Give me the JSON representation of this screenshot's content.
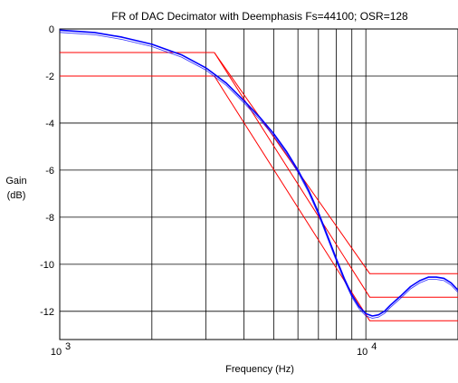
{
  "chart_data": {
    "type": "line",
    "title": "FR of DAC Decimator with Deemphasis Fs=44100; OSR=128",
    "xlabel": "Frequency (Hz)",
    "ylabel_line1": "Gain",
    "ylabel_line2": "(dB)",
    "x_scale": "log",
    "xlim": [
      1000,
      20000
    ],
    "ylim": [
      -13.2,
      0
    ],
    "grid": true,
    "x_tick_labels": [
      {
        "base": "10",
        "exp": "3",
        "value": 1000
      },
      {
        "base": "10",
        "exp": "4",
        "value": 10000
      }
    ],
    "y_ticks": [
      0,
      -2,
      -4,
      -6,
      -8,
      -10,
      -12
    ],
    "y_tick_labels": [
      "0",
      "-2",
      "-4",
      "-6",
      "-8",
      "-10",
      "-12"
    ],
    "series": [
      {
        "role": "response",
        "color": "#0000ff",
        "x": [
          1000,
          1300,
          1600,
          2000,
          2500,
          3000,
          3500,
          4000,
          4500,
          5000,
          5500,
          6000,
          6500,
          7000,
          7500,
          8000,
          8500,
          9000,
          9500,
          10000,
          10500,
          11000,
          11500,
          12000,
          13000,
          14000,
          15000,
          16000,
          17000,
          18000,
          19000,
          20000
        ],
        "y": [
          -0.05,
          -0.15,
          -0.35,
          -0.65,
          -1.1,
          -1.65,
          -2.3,
          -3.05,
          -3.75,
          -4.45,
          -5.2,
          -6.0,
          -6.85,
          -7.8,
          -8.8,
          -9.75,
          -10.6,
          -11.3,
          -11.8,
          -12.1,
          -12.2,
          -12.15,
          -12.0,
          -11.75,
          -11.35,
          -10.95,
          -10.7,
          -10.55,
          -10.55,
          -10.6,
          -10.8,
          -11.1
        ]
      }
    ],
    "mask_lines": {
      "color": "#ff0000",
      "lines": [
        {
          "x": [
            3200,
            10300,
            20000
          ],
          "y": [
            -1.0,
            -10.4,
            -10.4
          ]
        },
        {
          "x": [
            3200,
            10300,
            20000
          ],
          "y": [
            -1.0,
            -11.4,
            -11.4
          ]
        },
        {
          "x": [
            3200,
            10300,
            20000
          ],
          "y": [
            -2.0,
            -12.4,
            -12.4
          ]
        },
        {
          "x": [
            1000,
            3200
          ],
          "y": [
            -1.0,
            -1.0
          ]
        },
        {
          "x": [
            1000,
            3200
          ],
          "y": [
            -2.0,
            -2.0
          ]
        }
      ]
    }
  }
}
